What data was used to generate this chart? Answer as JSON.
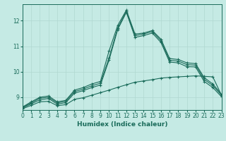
{
  "xlabel": "Humidex (Indice chaleur)",
  "bg_color": "#c5eae4",
  "grid_color": "#b0d8d0",
  "line_color": "#1a6b5a",
  "xlim": [
    0,
    23
  ],
  "ylim": [
    8.5,
    12.65
  ],
  "yticks": [
    9,
    10,
    11,
    12
  ],
  "xticks": [
    0,
    1,
    2,
    3,
    4,
    5,
    6,
    7,
    8,
    9,
    10,
    11,
    12,
    13,
    14,
    15,
    16,
    17,
    18,
    19,
    20,
    21,
    22,
    23
  ],
  "series": [
    {
      "x": [
        0,
        1,
        2,
        3,
        4,
        5,
        6,
        7,
        8,
        9,
        10,
        11,
        12,
        13,
        14,
        15,
        16,
        17,
        18,
        19,
        20,
        21,
        22,
        23
      ],
      "y": [
        8.62,
        8.82,
        9.0,
        9.05,
        8.82,
        8.88,
        9.28,
        9.38,
        9.52,
        9.62,
        10.82,
        11.82,
        12.42,
        11.48,
        11.52,
        11.62,
        11.28,
        10.52,
        10.48,
        10.35,
        10.32,
        9.77,
        9.52,
        9.12
      ]
    },
    {
      "x": [
        0,
        1,
        2,
        3,
        4,
        5,
        6,
        7,
        8,
        9,
        10,
        11,
        12,
        13,
        14,
        15,
        16,
        17,
        18,
        19,
        20,
        21,
        22,
        23
      ],
      "y": [
        8.6,
        8.78,
        8.96,
        9.0,
        8.78,
        8.84,
        9.22,
        9.32,
        9.45,
        9.55,
        10.55,
        11.72,
        12.38,
        11.42,
        11.48,
        11.58,
        11.22,
        10.45,
        10.42,
        10.28,
        10.26,
        9.7,
        9.46,
        9.08
      ]
    },
    {
      "x": [
        0,
        1,
        2,
        3,
        4,
        5,
        6,
        7,
        8,
        9,
        10,
        11,
        12,
        13,
        14,
        15,
        16,
        17,
        18,
        19,
        20,
        21,
        22,
        23
      ],
      "y": [
        8.58,
        8.74,
        8.9,
        8.95,
        8.73,
        8.79,
        9.16,
        9.26,
        9.38,
        9.48,
        10.46,
        11.66,
        12.33,
        11.35,
        11.42,
        11.52,
        11.15,
        10.38,
        10.35,
        10.2,
        10.19,
        9.62,
        9.38,
        9.02
      ]
    },
    {
      "x": [
        0,
        1,
        2,
        3,
        4,
        5,
        6,
        7,
        8,
        9,
        10,
        11,
        12,
        13,
        14,
        15,
        16,
        17,
        18,
        19,
        20,
        21,
        22,
        23
      ],
      "y": [
        8.55,
        8.68,
        8.82,
        8.84,
        8.67,
        8.71,
        8.92,
        8.98,
        9.08,
        9.18,
        9.28,
        9.39,
        9.49,
        9.59,
        9.64,
        9.69,
        9.75,
        9.78,
        9.8,
        9.82,
        9.84,
        9.82,
        9.8,
        9.08
      ]
    }
  ]
}
